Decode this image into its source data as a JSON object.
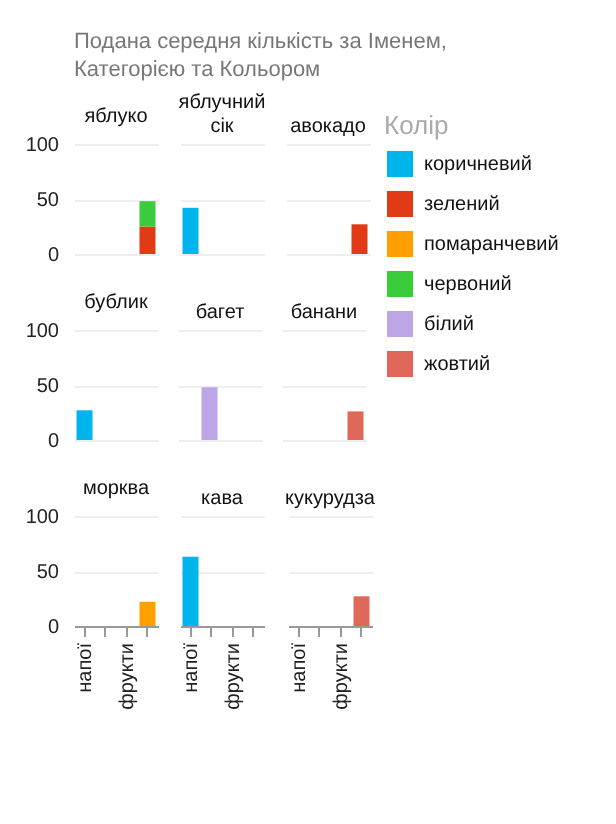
{
  "chart_data": [
    {
      "type": "other",
      "title": "Подана середня кількість за Іменем, Категорією та Кольором"
    },
    {
      "type": "bar",
      "stacked": true,
      "title": "яблуко",
      "categories": [
        "напої",
        null,
        "фрукти",
        null
      ],
      "ylim": [
        0,
        100
      ],
      "yticks": [
        0,
        50,
        100
      ],
      "grid": "y",
      "tick_labels": "y",
      "series": [
        {
          "color": "#e03a16",
          "values": [
            null,
            null,
            null,
            25
          ]
        },
        {
          "color": "#3bcc3b",
          "values": [
            null,
            null,
            null,
            23
          ]
        }
      ]
    },
    {
      "type": "bar",
      "stacked": true,
      "title": "яблучний сік",
      "categories": [
        "напої",
        null,
        "фрукти",
        null
      ],
      "ylim": [
        0,
        100
      ],
      "yticks": [
        0,
        50,
        100
      ],
      "grid": "y",
      "tick_labels": false,
      "series": [
        {
          "color": "#00b4ec",
          "values": [
            42,
            null,
            null,
            null
          ]
        }
      ]
    },
    {
      "type": "bar",
      "stacked": true,
      "title": "авокадо",
      "categories": [
        "напої",
        null,
        "фрукти",
        null
      ],
      "ylim": [
        0,
        100
      ],
      "yticks": [
        0,
        50,
        100
      ],
      "grid": "y",
      "tick_labels": false,
      "legend": "right",
      "legend_title": "Колір",
      "series": [
        {
          "name": "коричневий",
          "color": "#00b4ec",
          "values": [
            null,
            null,
            null,
            null
          ]
        },
        {
          "name": "зелений",
          "color": "#e03a16",
          "values": [
            null,
            null,
            null,
            27
          ]
        },
        {
          "name": "помаранчевий",
          "color": "#ff9f00",
          "values": [
            null,
            null,
            null,
            null
          ]
        },
        {
          "name": "червоний",
          "color": "#3bcc3b",
          "values": [
            null,
            null,
            null,
            null
          ]
        },
        {
          "name": "білий",
          "color": "#bda6e6",
          "values": [
            null,
            null,
            null,
            null
          ]
        },
        {
          "name": "жовтий",
          "color": "#e0685a",
          "values": [
            null,
            null,
            null,
            null
          ]
        }
      ]
    },
    {
      "type": "bar",
      "stacked": true,
      "title": "бублик",
      "categories": [
        "напої",
        null,
        "фрукти",
        null
      ],
      "ylim": [
        0,
        100
      ],
      "yticks": [
        0,
        50,
        100
      ],
      "grid": "y",
      "tick_labels": "y",
      "series": [
        {
          "color": "#00b4ec",
          "values": [
            27,
            null,
            null,
            null
          ]
        }
      ]
    },
    {
      "type": "bar",
      "stacked": true,
      "title": "багет",
      "categories": [
        "напої",
        null,
        "фрукти",
        null
      ],
      "ylim": [
        0,
        100
      ],
      "yticks": [
        0,
        50,
        100
      ],
      "grid": "y",
      "tick_labels": false,
      "series": [
        {
          "color": "#bda6e6",
          "values": [
            null,
            48,
            null,
            null
          ]
        }
      ]
    },
    {
      "type": "bar",
      "stacked": true,
      "title": "банани",
      "categories": [
        "напої",
        null,
        "фрукти",
        null
      ],
      "ylim": [
        0,
        100
      ],
      "yticks": [
        0,
        50,
        100
      ],
      "grid": "y",
      "tick_labels": false,
      "series": [
        {
          "color": "#e0685a",
          "values": [
            null,
            null,
            null,
            26
          ]
        }
      ]
    },
    {
      "type": "bar",
      "stacked": true,
      "title": "морква",
      "categories": [
        "напої",
        null,
        "фрукти",
        null
      ],
      "ylim": [
        0,
        100
      ],
      "yticks": [
        0,
        50,
        100
      ],
      "grid": "y",
      "series": [
        {
          "color": "#ff9f00",
          "values": [
            null,
            null,
            null,
            22
          ]
        }
      ]
    },
    {
      "type": "bar",
      "stacked": true,
      "title": "кава",
      "categories": [
        "напої",
        null,
        "фрукти",
        null
      ],
      "ylim": [
        0,
        100
      ],
      "yticks": [
        0,
        50,
        100
      ],
      "grid": "y",
      "tick_labels": "x",
      "series": [
        {
          "color": "#00b4ec",
          "values": [
            63,
            null,
            null,
            null
          ]
        }
      ]
    },
    {
      "type": "bar",
      "stacked": true,
      "title": "кукурудза",
      "categories": [
        "напої",
        null,
        "фрукти",
        null
      ],
      "ylim": [
        0,
        100
      ],
      "yticks": [
        0,
        50,
        100
      ],
      "grid": "y",
      "tick_labels": "x",
      "series": [
        {
          "color": "#e0685a",
          "values": [
            null,
            null,
            null,
            27
          ]
        }
      ]
    }
  ]
}
